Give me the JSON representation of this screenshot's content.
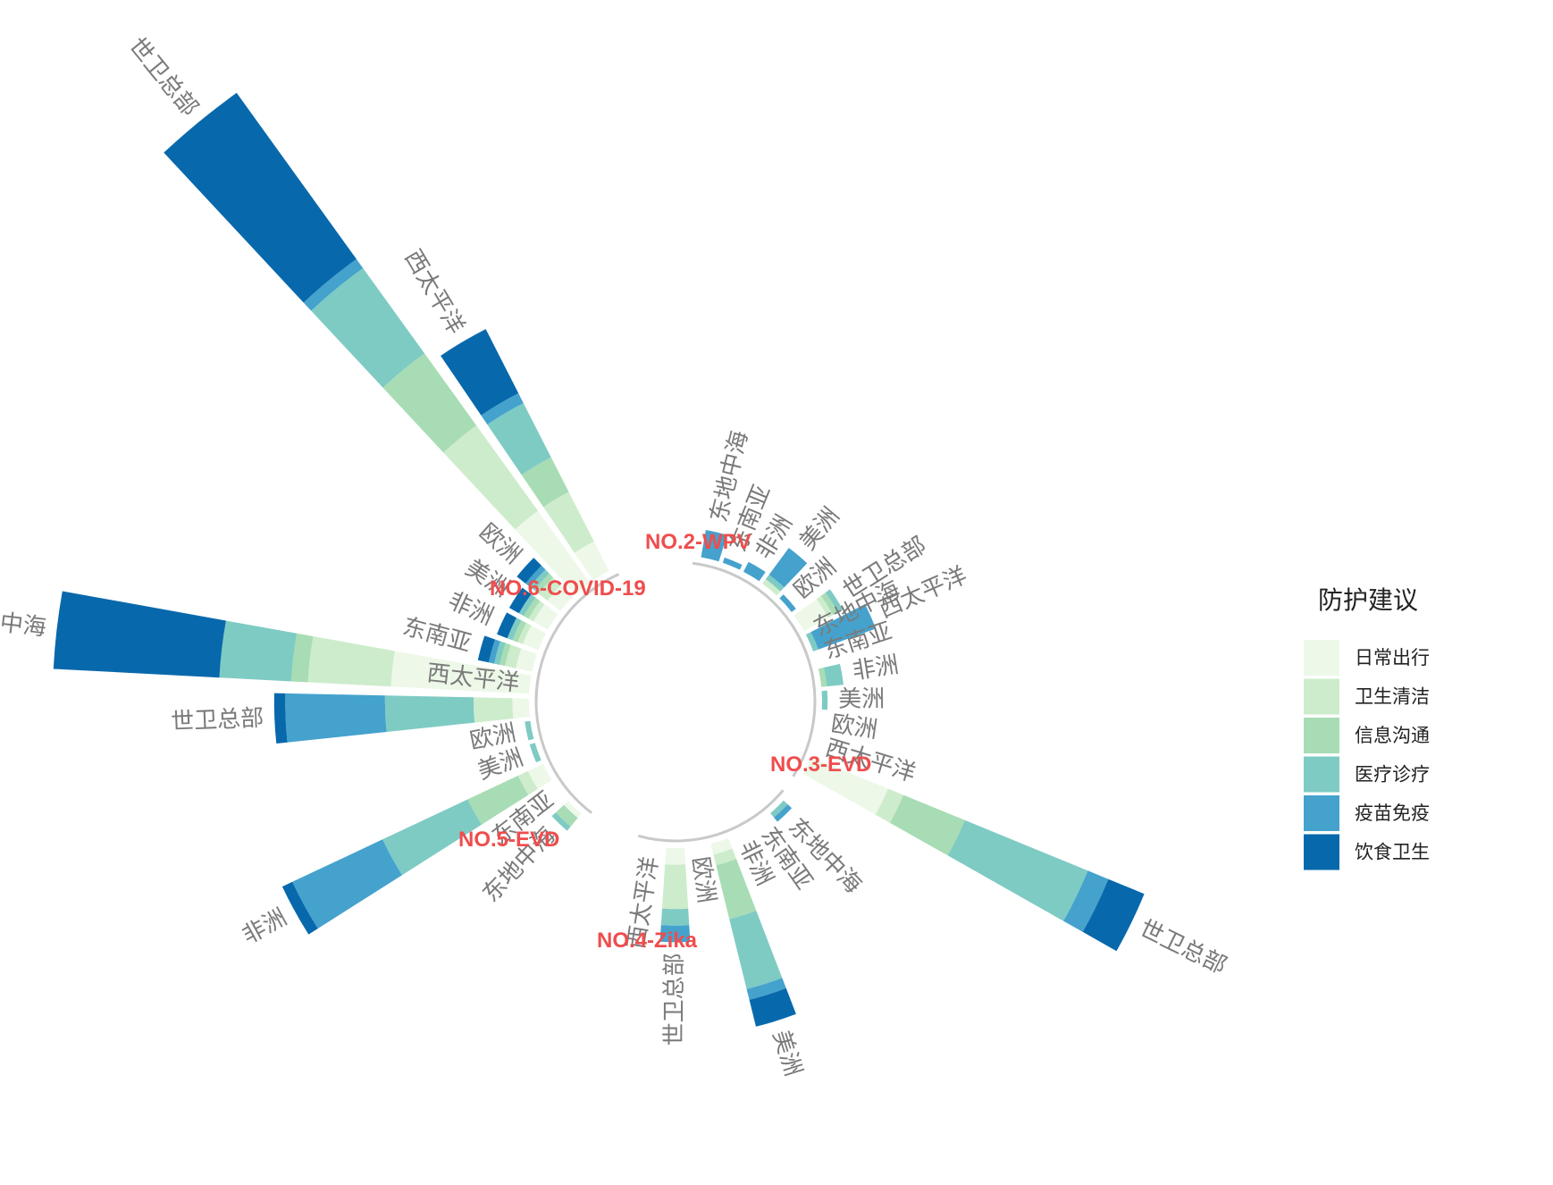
{
  "chart_data": {
    "type": "radial-stacked-bar",
    "legend_title": "防护建议",
    "legend_position": "right",
    "categories_stack": [
      "日常出行",
      "卫生清洁",
      "信息沟通",
      "医疗诊疗",
      "疫苗免疫",
      "饮食卫生"
    ],
    "colors": [
      "#edf8e9",
      "#cdeccb",
      "#a8dcb4",
      "#7ecbc4",
      "#45a2cd",
      "#0868ac"
    ],
    "groups": [
      {
        "name": "NO.6-COVID-19",
        "bars": [
          {
            "region": "东地中海",
            "values": [
              25,
              15,
              3,
              13,
              0,
              30
            ]
          },
          {
            "region": "东南亚",
            "values": [
              3,
              2,
              1,
              1,
              1,
              2
            ]
          },
          {
            "region": "非洲",
            "values": [
              3,
              1,
              1,
              1,
              0,
              2
            ]
          },
          {
            "region": "美洲",
            "values": [
              3,
              1,
              1,
              1,
              0,
              2
            ]
          },
          {
            "region": "欧洲",
            "values": [
              3,
              2,
              1,
              1,
              1,
              2
            ]
          },
          {
            "region": "世卫总部",
            "values": [
              16,
              19,
              16,
              19,
              2,
              37
            ]
          },
          {
            "region": "西太平洋",
            "values": [
              6,
              10,
              7,
              11,
              2,
              13
            ]
          }
        ]
      },
      {
        "name": "NO.2-WPV",
        "bars": [
          {
            "region": "东地中海",
            "values": [
              0,
              0,
              0,
              0,
              5,
              0
            ]
          },
          {
            "region": "东南亚",
            "values": [
              0,
              0,
              0,
              0,
              1,
              0
            ]
          },
          {
            "region": "非洲",
            "values": [
              0,
              0,
              0,
              0,
              2,
              0
            ]
          },
          {
            "region": "美洲",
            "values": [
              0,
              1,
              0,
              1,
              6,
              0
            ]
          },
          {
            "region": "欧洲",
            "values": [
              0,
              0,
              0,
              0,
              1,
              0
            ]
          },
          {
            "region": "世卫总部",
            "values": [
              5,
              1,
              1,
              1,
              0,
              0
            ]
          },
          {
            "region": "西太平洋",
            "values": [
              0,
              0,
              0,
              1,
              11,
              0
            ]
          }
        ]
      },
      {
        "name": "NO.3-EVD",
        "bars": [
          {
            "region": "东地中海",
            "values": [
              0,
              0,
              0,
              0,
              0,
              0
            ]
          },
          {
            "region": "东南亚",
            "values": [
              0,
              0,
              0,
              0,
              0,
              0
            ]
          },
          {
            "region": "非洲",
            "values": [
              0,
              0,
              1,
              3,
              0,
              0
            ]
          },
          {
            "region": "美洲",
            "values": [
              0,
              0,
              0,
              1,
              0,
              0
            ]
          },
          {
            "region": "欧洲",
            "values": [
              0,
              0,
              0,
              0,
              0,
              0
            ]
          },
          {
            "region": "西太平洋",
            "values": [
              0,
              0,
              0,
              0,
              0,
              0
            ]
          },
          {
            "region": "世卫总部",
            "values": [
              15,
              3,
              12,
              24,
              4,
              7
            ]
          }
        ]
      },
      {
        "name": "NO.4-Zika",
        "bars": [
          {
            "region": "东地中海",
            "values": [
              0,
              0,
              0,
              1,
              1,
              0
            ]
          },
          {
            "region": "东南亚",
            "values": [
              0,
              0,
              0,
              0,
              0,
              0
            ]
          },
          {
            "region": "非洲",
            "values": [
              0,
              0,
              0,
              0,
              0,
              0
            ]
          },
          {
            "region": "美洲",
            "values": [
              2,
              2,
              10,
              13,
              2,
              5
            ]
          },
          {
            "region": "欧洲",
            "values": [
              0,
              0,
              0,
              0,
              0,
              0
            ]
          },
          {
            "region": "世卫总部",
            "values": [
              3,
              8,
              0,
              3,
              3,
              0
            ]
          },
          {
            "region": "西太平洋",
            "values": [
              0,
              0,
              0,
              0,
              0,
              0
            ]
          }
        ]
      },
      {
        "name": "NO.5-EVD",
        "bars": [
          {
            "region": "东地中海",
            "values": [
              1,
              0,
              2,
              1,
              0,
              0
            ]
          },
          {
            "region": "东南亚",
            "values": [
              0,
              0,
              0,
              0,
              0,
              0
            ]
          },
          {
            "region": "非洲",
            "values": [
              3,
              2,
              10,
              17,
              18,
              2
            ]
          },
          {
            "region": "美洲",
            "values": [
              0,
              0,
              0,
              1,
              0,
              0
            ]
          },
          {
            "region": "欧洲",
            "values": [
              0,
              0,
              0,
              1,
              0,
              0
            ]
          },
          {
            "region": "世卫总部",
            "values": [
              3,
              7,
              0,
              16,
              18,
              2
            ]
          },
          {
            "region": "西太平洋",
            "values": [
              0,
              0,
              0,
              0,
              0,
              0
            ]
          }
        ]
      }
    ]
  }
}
